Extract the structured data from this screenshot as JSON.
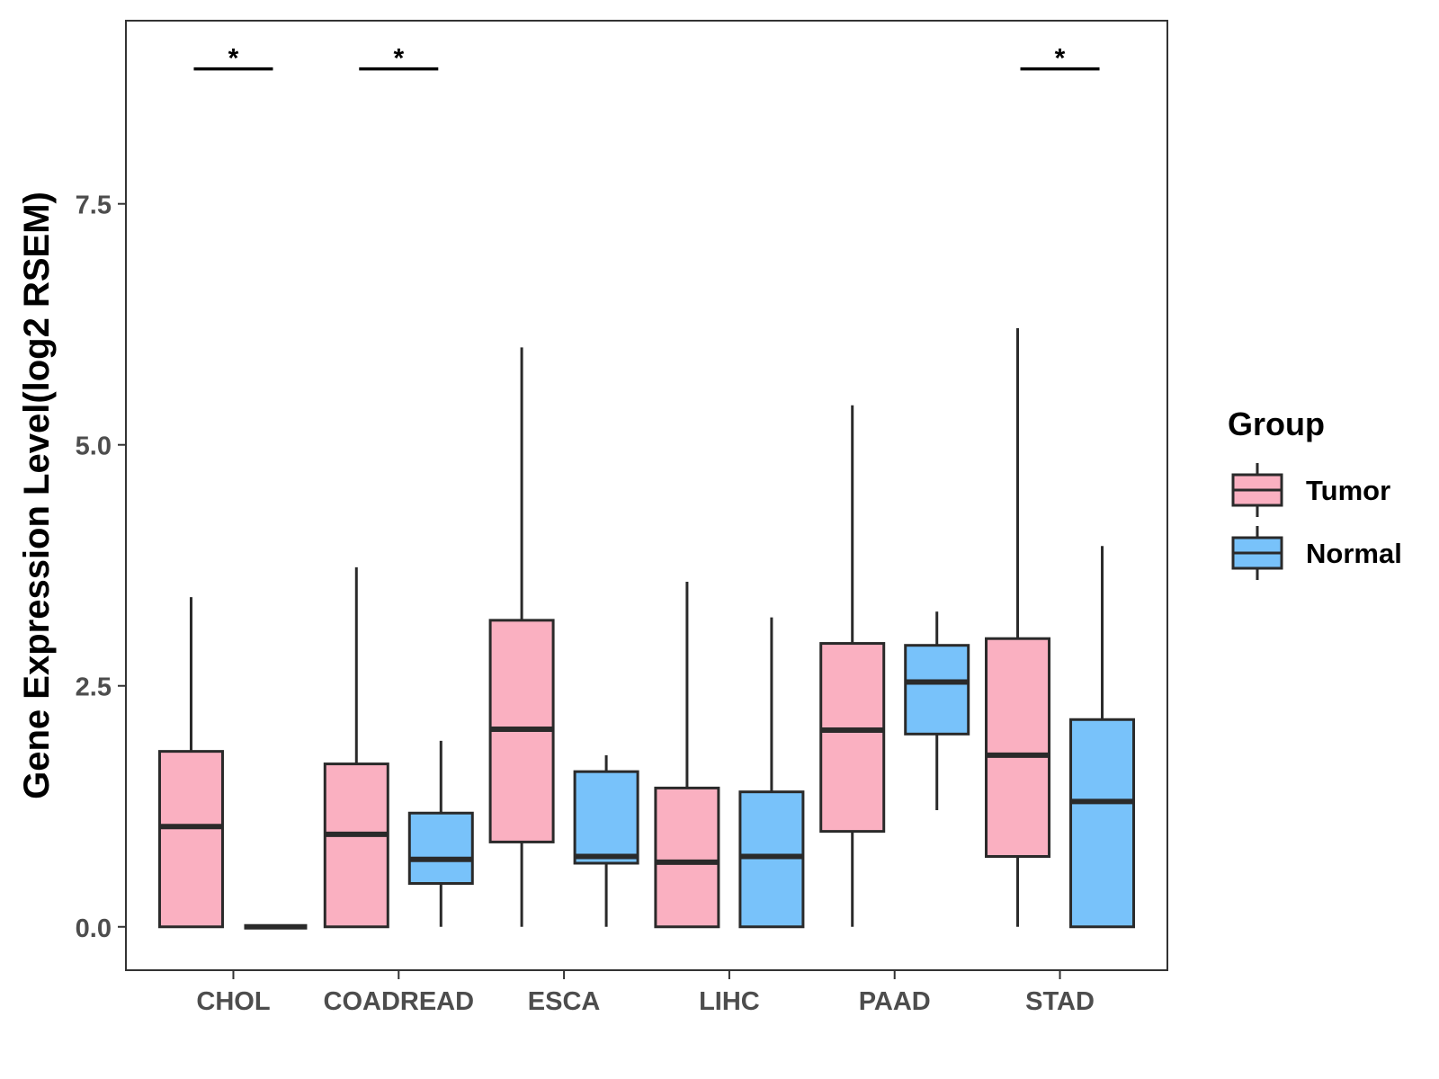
{
  "chart_data": {
    "type": "boxplot",
    "title": "",
    "xlabel": "",
    "ylabel": "Gene Expression Level(log2 RSEM)",
    "ylim": [
      -0.45,
      9.4
    ],
    "yticks": [
      0.0,
      2.5,
      5.0,
      7.5
    ],
    "ytick_labels": [
      "0.0",
      "2.5",
      "5.0",
      "7.5"
    ],
    "categories": [
      "CHOL",
      "COADREAD",
      "ESCA",
      "LIHC",
      "PAAD",
      "STAD"
    ],
    "legend": {
      "title": "Group",
      "position": "right",
      "entries": [
        "Tumor",
        "Normal"
      ]
    },
    "colors": {
      "Tumor": "#FAB0C1",
      "Normal": "#78C2FA",
      "outline": "#2a2a2a"
    },
    "series": [
      {
        "name": "Tumor",
        "boxes": [
          {
            "min": 0.0,
            "q1": 0.0,
            "median": 1.04,
            "q3": 1.82,
            "max": 3.42
          },
          {
            "min": 0.0,
            "q1": 0.0,
            "median": 0.96,
            "q3": 1.69,
            "max": 3.73
          },
          {
            "min": 0.0,
            "q1": 0.88,
            "median": 2.05,
            "q3": 3.18,
            "max": 6.01
          },
          {
            "min": 0.0,
            "q1": 0.0,
            "median": 0.67,
            "q3": 1.44,
            "max": 3.58
          },
          {
            "min": 0.0,
            "q1": 0.99,
            "median": 2.04,
            "q3": 2.94,
            "max": 5.41
          },
          {
            "min": 0.0,
            "q1": 0.73,
            "median": 1.78,
            "q3": 2.99,
            "max": 6.21
          }
        ]
      },
      {
        "name": "Normal",
        "boxes": [
          {
            "min": 0.0,
            "q1": 0.0,
            "median": 0.0,
            "q3": 0.0,
            "max": 0.0
          },
          {
            "min": 0.0,
            "q1": 0.45,
            "median": 0.7,
            "q3": 1.18,
            "max": 1.93
          },
          {
            "min": 0.0,
            "q1": 0.66,
            "median": 0.73,
            "q3": 1.61,
            "max": 1.78
          },
          {
            "min": 0.0,
            "q1": 0.0,
            "median": 0.73,
            "q3": 1.4,
            "max": 3.21
          },
          {
            "min": 1.21,
            "q1": 2.0,
            "median": 2.54,
            "q3": 2.92,
            "max": 3.27
          },
          {
            "min": 0.0,
            "q1": 0.0,
            "median": 1.3,
            "q3": 2.15,
            "max": 3.95
          }
        ]
      }
    ],
    "significance": [
      {
        "category": "CHOL",
        "label": "*"
      },
      {
        "category": "COADREAD",
        "label": "*"
      },
      {
        "category": "STAD",
        "label": "*"
      }
    ],
    "significance_y": 8.9
  }
}
